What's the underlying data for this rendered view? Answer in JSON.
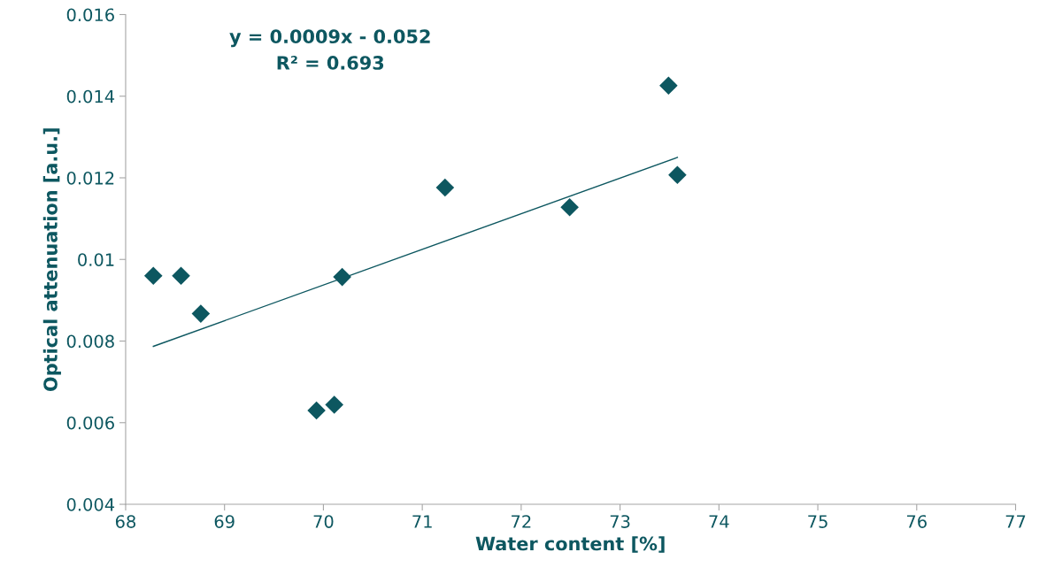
{
  "chart_data": {
    "type": "scatter",
    "xlabel": "Water content [%]",
    "ylabel": "Optical attenuation [a.u.]",
    "annotations": [
      "y = 0.0009x - 0.052\nR² = 0.693"
    ],
    "marker": "diamond",
    "grid": false,
    "series": [
      {
        "color": "#0d5760",
        "x": [
          68.28,
          68.56,
          68.76,
          69.93,
          70.11,
          70.19,
          71.23,
          72.49,
          73.49,
          73.58
        ],
        "values": [
          0.0096,
          0.0096,
          0.00867,
          0.0063,
          0.00644,
          0.00957,
          0.01176,
          0.01128,
          0.01426,
          0.01207
        ]
      },
      {
        "type": "line",
        "color": "#0d5760",
        "x": [
          68.28,
          73.58
        ],
        "values": [
          0.00787,
          0.0125
        ],
        "marker": "none"
      }
    ],
    "xlim": [
      68,
      77
    ],
    "xticks": [
      68,
      69,
      70,
      71,
      72,
      73,
      74,
      75,
      76,
      77
    ],
    "ylim": [
      0.004,
      0.016
    ],
    "yticks": [
      0.004,
      0.006,
      0.008,
      0.01,
      0.012,
      0.014,
      0.016
    ]
  }
}
